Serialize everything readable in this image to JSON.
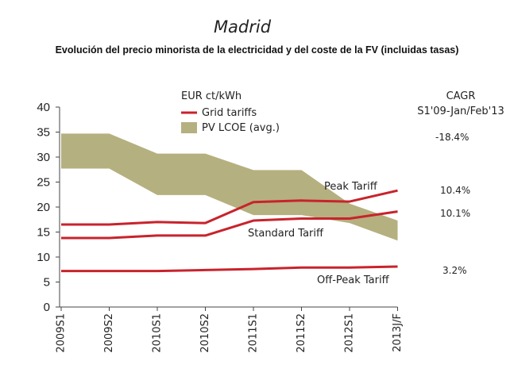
{
  "header": {
    "title": "Madrid",
    "subtitle": "Evolución del precio minorista de la electricidad y del coste de la FV (incluidas tasas)"
  },
  "cagr": {
    "title": "CAGR",
    "period": "S1'09-Jan/Feb'13",
    "values": [
      {
        "series": "PV LCOE (avg.)",
        "text": "-18.4%"
      },
      {
        "series": "Peak Tariff",
        "text": "10.4%"
      },
      {
        "series": "Standard Tariff",
        "text": "10.1%"
      },
      {
        "series": "Off-Peak Tariff",
        "text": "3.2%"
      }
    ]
  },
  "chart_data": {
    "type": "line",
    "unit_label": "EUR ct/kWh",
    "categories": [
      "2009S1",
      "2009S2",
      "2010S1",
      "2010S2",
      "2011S1",
      "2011S2",
      "2012S1",
      "2013J/F"
    ],
    "ylim": [
      0,
      40
    ],
    "yticks": [
      0,
      5,
      10,
      15,
      20,
      25,
      30,
      35,
      40
    ],
    "grid": false,
    "legend_position": "top-center",
    "legend": [
      {
        "label": "Grid tariffs",
        "kind": "line",
        "color": "#c8232c"
      },
      {
        "label": "PV LCOE (avg.)",
        "kind": "band",
        "color": "#b5b07f"
      }
    ],
    "band": {
      "name": "PV LCOE (avg.)",
      "color": "#b5b07f",
      "upper": [
        34.7,
        34.7,
        30.7,
        30.7,
        27.4,
        27.4,
        20.7,
        17.3
      ],
      "lower": [
        27.7,
        27.7,
        22.4,
        22.4,
        18.4,
        18.4,
        16.8,
        13.3
      ]
    },
    "series": [
      {
        "name": "Peak Tariff",
        "color": "#c8232c",
        "values": [
          16.5,
          16.5,
          17.0,
          16.8,
          21.0,
          21.3,
          21.1,
          23.3
        ]
      },
      {
        "name": "Standard Tariff",
        "color": "#c8232c",
        "values": [
          13.8,
          13.8,
          14.3,
          14.3,
          17.3,
          17.7,
          17.7,
          19.1
        ]
      },
      {
        "name": "Off-Peak Tariff",
        "color": "#c8232c",
        "values": [
          7.2,
          7.2,
          7.2,
          7.4,
          7.6,
          7.9,
          7.9,
          8.1
        ]
      }
    ]
  }
}
